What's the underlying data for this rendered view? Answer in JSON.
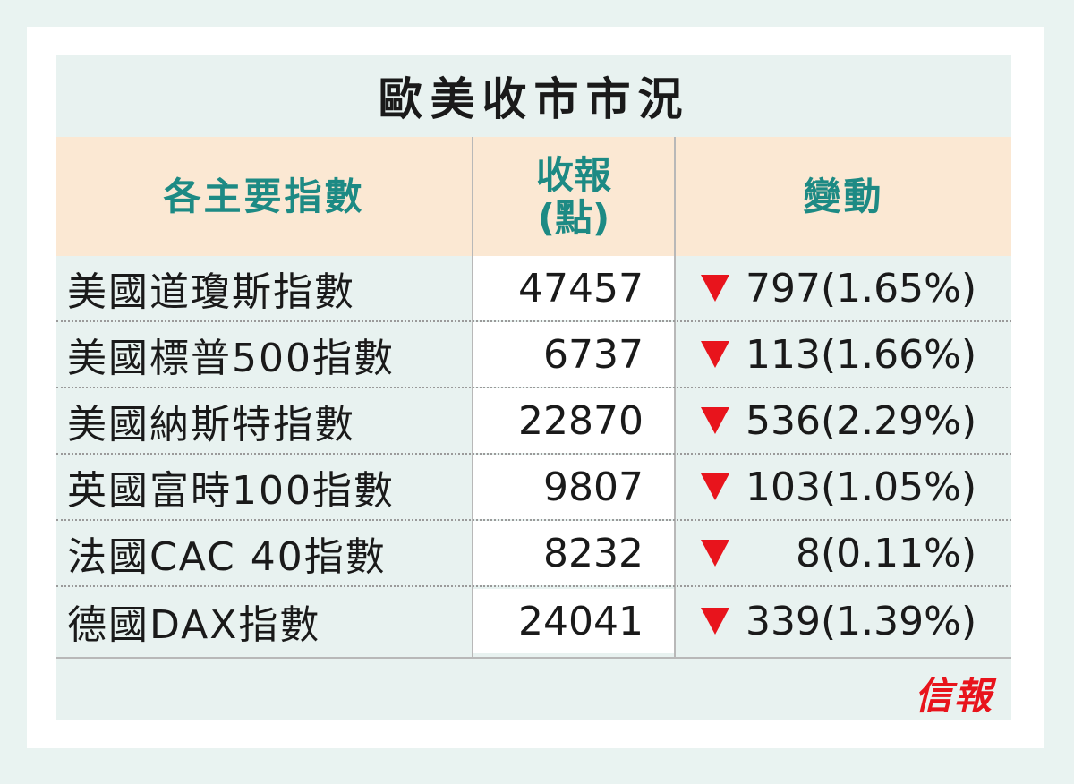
{
  "title": "歐美收市市況",
  "headers": {
    "name": "各主要指數",
    "close_line1": "收報",
    "close_line2": "(點)",
    "change": "變動"
  },
  "rows": [
    {
      "name": "美國道瓊斯指數",
      "close": "47457",
      "change": "797",
      "pct": "(1.65%)"
    },
    {
      "name": "美國標普500指數",
      "close": "6737",
      "change": "113",
      "pct": "(1.66%)"
    },
    {
      "name": "美國納斯特指數",
      "close": "22870",
      "change": "536",
      "pct": "(2.29%)"
    },
    {
      "name": "英國富時100指數",
      "close": "9807",
      "change": "103",
      "pct": "(1.05%)"
    },
    {
      "name": "法國CAC 40指數",
      "close": "8232",
      "change": "8",
      "pct": "(0.11%)"
    },
    {
      "name": "德國DAX指數",
      "close": "24041",
      "change": "339",
      "pct": "(1.39%)"
    }
  ],
  "brand": "信報",
  "colors": {
    "header_text": "#1d8a84",
    "header_bg": "#fbe8d3",
    "down_arrow": "#e8141c",
    "brand": "#e8141c"
  },
  "icons": {
    "down": "down-triangle-icon"
  }
}
